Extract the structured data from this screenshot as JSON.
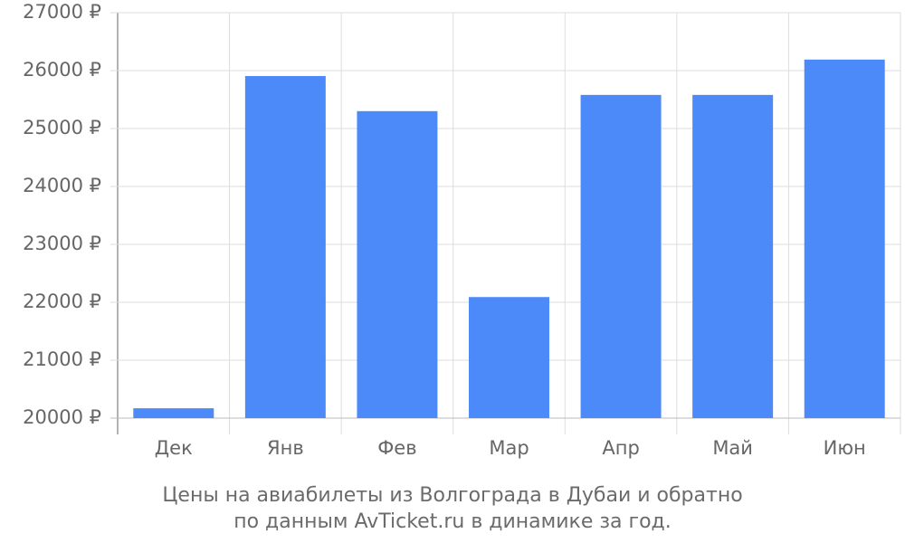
{
  "chart_data": {
    "type": "bar",
    "title": [
      "Цены на авиабилеты из Волгограда в Дубаи и обратно",
      "по данным AvTicket.ru в динамике за год."
    ],
    "categories": [
      "Дек",
      "Янв",
      "Фев",
      "Мар",
      "Апр",
      "Май",
      "Июн"
    ],
    "values": [
      20170,
      25906,
      25300,
      22090,
      25580,
      25580,
      26190
    ],
    "color": "#4d8af9",
    "ylim": [
      20000,
      27000
    ],
    "yticks": [
      {
        "value": 20000,
        "label": "20000 ₽"
      },
      {
        "value": 21000,
        "label": "21000 ₽"
      },
      {
        "value": 22000,
        "label": "22000 ₽"
      },
      {
        "value": 23000,
        "label": "23000 ₽"
      },
      {
        "value": 24000,
        "label": "24000 ₽"
      },
      {
        "value": 25000,
        "label": "25000 ₽"
      },
      {
        "value": 26000,
        "label": "26000 ₽"
      },
      {
        "value": 27000,
        "label": "27000 ₽"
      }
    ],
    "grid": true
  }
}
